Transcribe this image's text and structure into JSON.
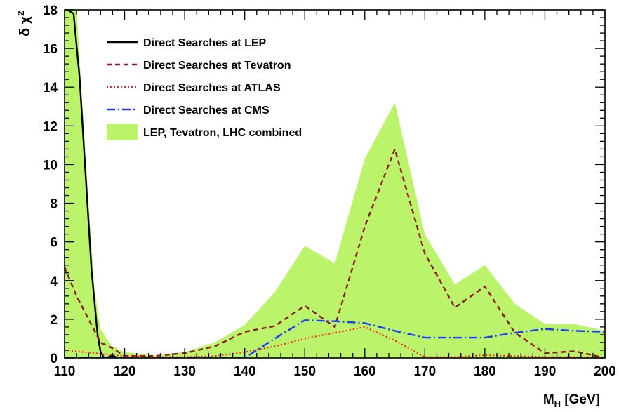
{
  "chart_data": {
    "type": "line",
    "title": "",
    "xlabel": {
      "main": "M",
      "sub": "H",
      "rest": " [GeV]"
    },
    "ylabel": {
      "main": "δ χ",
      "sup": "2"
    },
    "xlim": [
      110,
      200
    ],
    "ylim": [
      0,
      18
    ],
    "x_ticks": [
      110,
      120,
      130,
      140,
      150,
      160,
      170,
      180,
      190,
      200
    ],
    "y_ticks": [
      0,
      2,
      4,
      6,
      8,
      10,
      12,
      14,
      16,
      18
    ],
    "grid": false,
    "legend_position": "top-left",
    "band": {
      "name": "LEP, Tevatron, LHC combined",
      "color": "#bbf36a",
      "x": [
        110,
        112,
        114,
        115,
        116,
        117,
        118,
        120,
        125,
        130,
        135,
        140,
        145,
        150,
        155,
        160,
        165,
        170,
        175,
        180,
        185,
        190,
        195,
        200
      ],
      "upper": [
        22,
        18,
        8,
        3.5,
        1.5,
        1.0,
        0.6,
        0.3,
        0.15,
        0.3,
        0.8,
        1.7,
        3.4,
        5.8,
        4.9,
        10.3,
        13.2,
        6.4,
        3.8,
        4.8,
        2.8,
        1.75,
        1.75,
        1.4
      ],
      "lower": [
        0,
        0,
        0,
        0,
        0,
        0,
        0,
        0,
        0,
        0,
        0,
        0,
        0,
        0,
        0,
        0,
        0,
        0,
        0,
        0,
        0,
        0,
        0,
        0
      ]
    },
    "series": [
      {
        "name": "Direct Searches at LEP",
        "color": "#000000",
        "dash": "",
        "width": 2.4,
        "x": [
          110.5,
          111.5,
          112.5,
          113.5,
          114.5,
          115.5,
          116,
          116.5,
          117,
          117.5,
          118,
          118.5,
          119,
          120
        ],
        "y": [
          18,
          17.8,
          14.5,
          9.5,
          4.5,
          1.2,
          0.3,
          0.05,
          0.0,
          0.08,
          0.12,
          0.05,
          0.0,
          0.0
        ]
      },
      {
        "name": "Direct Searches at Tevatron",
        "color": "#8b1a1a",
        "dash": "7,5",
        "width": 2.4,
        "x": [
          110,
          112,
          114,
          116,
          118,
          120,
          125,
          130,
          135,
          140,
          145,
          150,
          155,
          160,
          165,
          170,
          175,
          180,
          185,
          190,
          195,
          200
        ],
        "y": [
          4.7,
          3.2,
          2.0,
          0.8,
          0.5,
          0.1,
          0.1,
          0.25,
          0.6,
          1.35,
          1.65,
          2.7,
          1.6,
          6.8,
          10.8,
          5.4,
          2.6,
          3.7,
          1.3,
          0.25,
          0.35,
          0.0
        ]
      },
      {
        "name": "Direct Searches at ATLAS",
        "color": "#ff1a1a",
        "dash": "2,3",
        "width": 2.0,
        "x": [
          110,
          115,
          120,
          125,
          130,
          135,
          140,
          145,
          150,
          155,
          160,
          165,
          170,
          175,
          180,
          185,
          190,
          195,
          200
        ],
        "y": [
          0.4,
          0.25,
          0.1,
          0.05,
          0.05,
          0.1,
          0.3,
          0.6,
          1.0,
          1.3,
          1.6,
          0.9,
          0.05,
          0.05,
          0.15,
          0.1,
          0.05,
          0.05,
          0.0
        ]
      },
      {
        "name": "Direct Searches at CMS",
        "color": "#1a3cff",
        "dash": "12,4,2,4",
        "width": 2.4,
        "x": [
          110,
          120,
          130,
          135,
          140,
          145,
          150,
          155,
          160,
          165,
          170,
          175,
          180,
          185,
          190,
          195,
          200
        ],
        "y": [
          0.0,
          0.0,
          0.0,
          0.0,
          0.0,
          1.0,
          1.95,
          1.9,
          1.8,
          1.4,
          1.05,
          1.05,
          1.05,
          1.3,
          1.5,
          1.4,
          1.35
        ]
      }
    ]
  }
}
